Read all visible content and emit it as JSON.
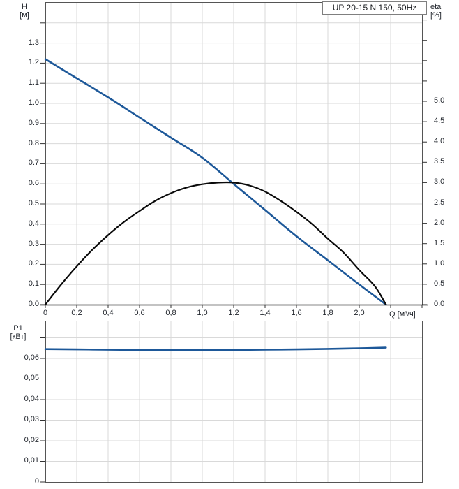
{
  "panel": {
    "background": "#ffffff",
    "colors": {
      "curve_blue": "#1d5899",
      "curve_black": "#0a0a0a",
      "grid": "#d9d9d9",
      "frame": "#555555",
      "x_axis_line": "#111111",
      "tick": "#333333",
      "text": "#23272e",
      "title_border": "#7f7f7f"
    }
  },
  "chart_data": [
    {
      "type": "line",
      "title": "UP 20-15 N 150, 50Hz",
      "x_axis": {
        "label": "Q [м³/ч]",
        "range": [
          0,
          2.4
        ],
        "ticks": [
          {
            "v": 0,
            "label": "0"
          },
          {
            "v": 0.2,
            "label": "0,2"
          },
          {
            "v": 0.4,
            "label": "0,4"
          },
          {
            "v": 0.6,
            "label": "0,6"
          },
          {
            "v": 0.8,
            "label": "0,8"
          },
          {
            "v": 1.0,
            "label": "1,0"
          },
          {
            "v": 1.2,
            "label": "1,2"
          },
          {
            "v": 1.4,
            "label": "1,4"
          },
          {
            "v": 1.6,
            "label": "1,6"
          },
          {
            "v": 1.8,
            "label": "1,8"
          },
          {
            "v": 2.0,
            "label": "2,0"
          },
          {
            "v": 2.2,
            "label": ""
          },
          {
            "v": 2.4,
            "label": ""
          }
        ]
      },
      "left_axis": {
        "name_lines": [
          "H",
          "[м]"
        ],
        "range": [
          0,
          1.5
        ],
        "ticks": [
          {
            "v": 0.0,
            "label": "0.0"
          },
          {
            "v": 0.1,
            "label": "0.1"
          },
          {
            "v": 0.2,
            "label": "0.2"
          },
          {
            "v": 0.3,
            "label": "0.3"
          },
          {
            "v": 0.4,
            "label": "0.4"
          },
          {
            "v": 0.5,
            "label": "0.5"
          },
          {
            "v": 0.6,
            "label": "0.6"
          },
          {
            "v": 0.7,
            "label": "0.7"
          },
          {
            "v": 0.8,
            "label": "0.8"
          },
          {
            "v": 0.9,
            "label": "0.9"
          },
          {
            "v": 1.0,
            "label": "1.0"
          },
          {
            "v": 1.1,
            "label": "1.1"
          },
          {
            "v": 1.2,
            "label": "1.2"
          },
          {
            "v": 1.3,
            "label": "1.3"
          },
          {
            "v": 1.4,
            "label": ""
          }
        ]
      },
      "right_axis": {
        "name_lines": [
          "eta",
          "[%]"
        ],
        "range": [
          0,
          7.5
        ],
        "ticks": [
          {
            "v": 0.0,
            "label": "0.0"
          },
          {
            "v": 0.5,
            "label": "0.5"
          },
          {
            "v": 1.0,
            "label": "1.0"
          },
          {
            "v": 1.5,
            "label": "1.5"
          },
          {
            "v": 2.0,
            "label": "2.0"
          },
          {
            "v": 2.5,
            "label": "2.5"
          },
          {
            "v": 3.0,
            "label": "3.0"
          },
          {
            "v": 3.5,
            "label": "3.5"
          },
          {
            "v": 4.0,
            "label": "4.0"
          },
          {
            "v": 4.5,
            "label": "4.5"
          },
          {
            "v": 5.0,
            "label": "5.0"
          },
          {
            "v": 5.5,
            "label": ""
          },
          {
            "v": 6.0,
            "label": ""
          },
          {
            "v": 6.5,
            "label": ""
          },
          {
            "v": 7.0,
            "label": ""
          }
        ]
      },
      "series": [
        {
          "name": "head-curve-H",
          "axis": "left",
          "color": "#1d5899",
          "width": 2.6,
          "points": [
            [
              0,
              1.22
            ],
            [
              0.2,
              1.125
            ],
            [
              0.4,
              1.03
            ],
            [
              0.6,
              0.93
            ],
            [
              0.8,
              0.83
            ],
            [
              1.0,
              0.73
            ],
            [
              1.2,
              0.6
            ],
            [
              1.4,
              0.47
            ],
            [
              1.6,
              0.34
            ],
            [
              1.8,
              0.22
            ],
            [
              2.0,
              0.1
            ],
            [
              2.17,
              0.0
            ]
          ]
        },
        {
          "name": "efficiency-curve-eta",
          "axis": "right",
          "color": "#0a0a0a",
          "width": 2.2,
          "points": [
            [
              0,
              0
            ],
            [
              0.1,
              0.49
            ],
            [
              0.2,
              0.94
            ],
            [
              0.3,
              1.35
            ],
            [
              0.4,
              1.71
            ],
            [
              0.5,
              2.03
            ],
            [
              0.6,
              2.3
            ],
            [
              0.7,
              2.55
            ],
            [
              0.8,
              2.74
            ],
            [
              0.9,
              2.88
            ],
            [
              1.0,
              2.96
            ],
            [
              1.1,
              3.0
            ],
            [
              1.2,
              3.0
            ],
            [
              1.3,
              2.93
            ],
            [
              1.4,
              2.78
            ],
            [
              1.5,
              2.55
            ],
            [
              1.6,
              2.28
            ],
            [
              1.7,
              1.98
            ],
            [
              1.8,
              1.62
            ],
            [
              1.9,
              1.28
            ],
            [
              2.0,
              0.85
            ],
            [
              2.1,
              0.45
            ],
            [
              2.17,
              0.0
            ]
          ]
        }
      ]
    },
    {
      "type": "line",
      "title": "",
      "x_axis": {
        "label": "",
        "range": [
          0,
          2.4
        ],
        "ticks": []
      },
      "left_axis": {
        "name_lines": [
          "P1",
          "[кВт]"
        ],
        "range": [
          0,
          0.0783
        ],
        "ticks": [
          {
            "v": 0.0,
            "label": "0"
          },
          {
            "v": 0.01,
            "label": "0,01"
          },
          {
            "v": 0.02,
            "label": "0,02"
          },
          {
            "v": 0.03,
            "label": "0,03"
          },
          {
            "v": 0.04,
            "label": "0,04"
          },
          {
            "v": 0.05,
            "label": "0,05"
          },
          {
            "v": 0.06,
            "label": "0,06"
          },
          {
            "v": 0.07,
            "label": ""
          }
        ]
      },
      "series": [
        {
          "name": "power-curve-P1",
          "axis": "left",
          "color": "#1d5899",
          "width": 2.6,
          "points": [
            [
              0,
              0.0645
            ],
            [
              0.3,
              0.0643
            ],
            [
              0.6,
              0.0641
            ],
            [
              0.9,
              0.064
            ],
            [
              1.2,
              0.0641
            ],
            [
              1.5,
              0.0643
            ],
            [
              1.8,
              0.0646
            ],
            [
              2.0,
              0.0649
            ],
            [
              2.17,
              0.0652
            ]
          ]
        }
      ]
    }
  ]
}
